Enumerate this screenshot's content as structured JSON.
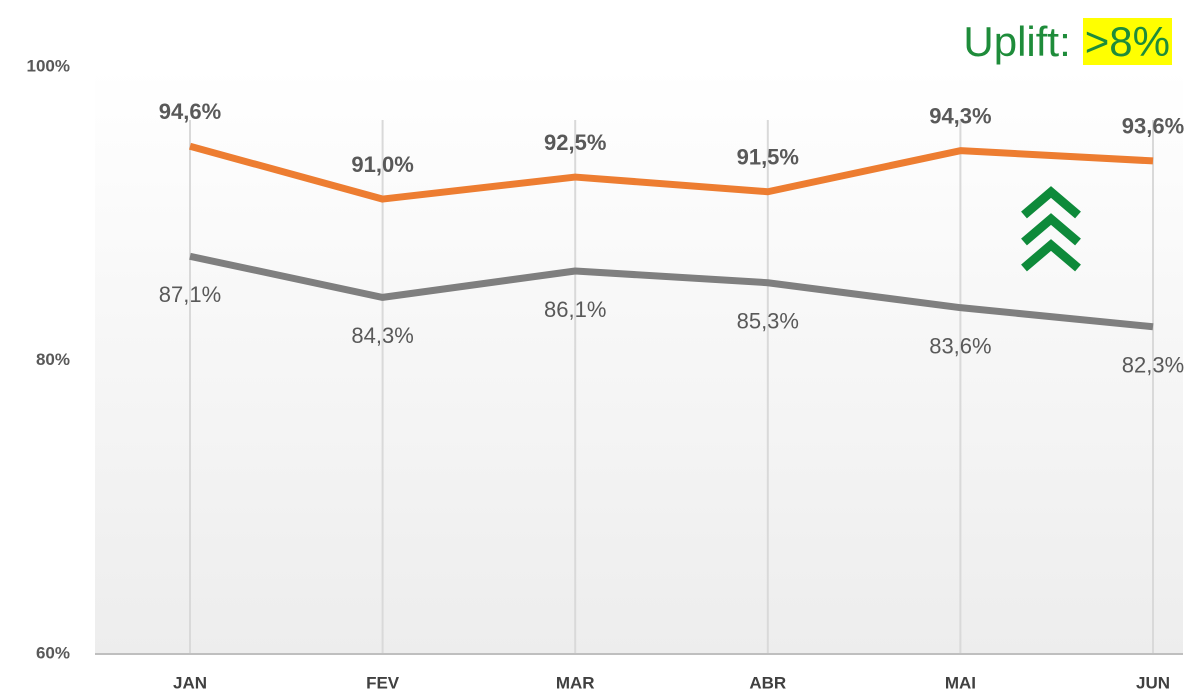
{
  "chart_data": {
    "type": "line",
    "annotation": {
      "text": "Uplift:",
      "highlight": ">8%"
    },
    "categories": [
      "JAN",
      "FEV",
      "MAR",
      "ABR",
      "MAI",
      "JUN"
    ],
    "series": [
      {
        "color": "#ed7d31",
        "values": [
          94.6,
          91.0,
          92.5,
          91.5,
          94.3,
          93.6
        ],
        "value_labels": [
          "94,6%",
          "91,0%",
          "92,5%",
          "91,5%",
          "94,3%",
          "93,6%"
        ]
      },
      {
        "color": "#7f7f7f",
        "values": [
          87.1,
          84.3,
          86.1,
          85.3,
          83.6,
          82.3
        ],
        "value_labels": [
          "87,1%",
          "84,3%",
          "86,1%",
          "85,3%",
          "83,6%",
          "82,3%"
        ]
      }
    ],
    "ylim": [
      60,
      100
    ],
    "yticks": [
      {
        "value": 60,
        "label": "60%"
      },
      {
        "value": 80,
        "label": "80%"
      },
      {
        "value": 100,
        "label": "100%"
      }
    ],
    "grid": false
  }
}
